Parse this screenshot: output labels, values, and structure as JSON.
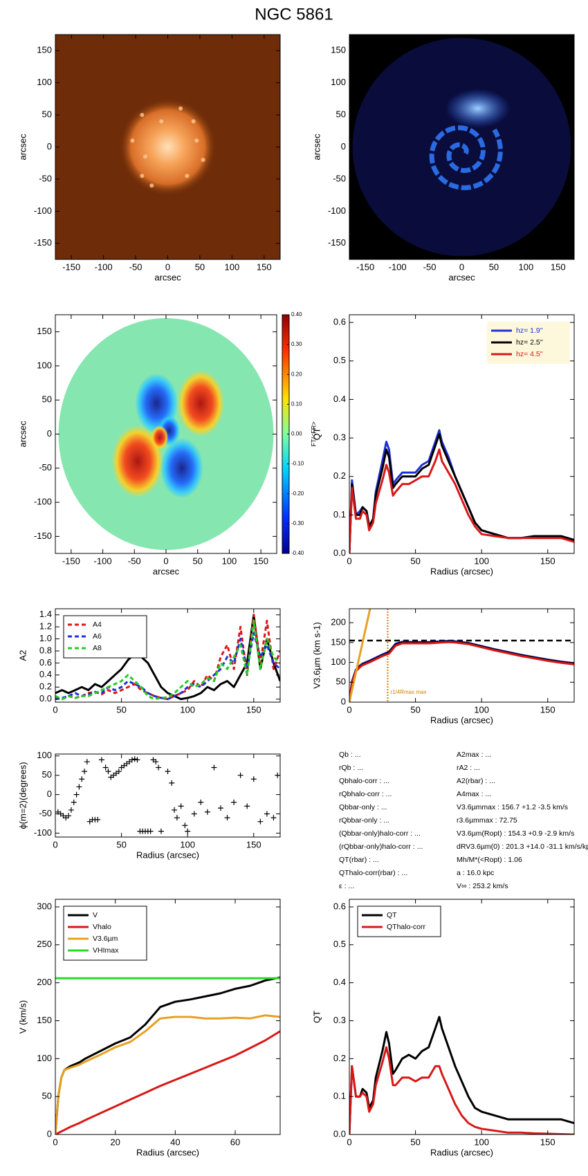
{
  "title": "NGC 5861",
  "chart_data": [
    {
      "type": "image",
      "colormap": "copper",
      "xlabel": "arcsec",
      "ylabel": "arcsec",
      "xlim": [
        -175,
        175
      ],
      "ylim": [
        -175,
        175
      ],
      "xticks": [
        -150,
        -100,
        -50,
        0,
        50,
        100,
        150
      ],
      "yticks": [
        -150,
        -100,
        -50,
        0,
        50,
        100,
        150
      ]
    },
    {
      "type": "image",
      "colormap": "blue",
      "xlabel": "arcsec",
      "ylabel": "arcsec",
      "xlim": [
        -175,
        175
      ],
      "ylim": [
        -175,
        175
      ],
      "xticks": [
        -150,
        -100,
        -50,
        0,
        50,
        100,
        150
      ],
      "yticks": [
        -150,
        -100,
        -50,
        0,
        50,
        100,
        150
      ]
    },
    {
      "type": "image",
      "colormap": "jet",
      "xlabel": "arcsec",
      "ylabel": "arcsec",
      "xlim": [
        -175,
        175
      ],
      "ylim": [
        -175,
        175
      ],
      "xticks": [
        -150,
        -100,
        -50,
        0,
        50,
        100,
        150
      ],
      "yticks": [
        -150,
        -100,
        -50,
        0,
        50,
        100,
        150
      ],
      "colorbar": {
        "label": "FT/<FR>",
        "lim": [
          -0.4,
          0.4
        ],
        "ticks": [
          {
            "value": 0.4,
            "label": "0.40"
          },
          {
            "value": 0.3,
            "label": "0.30"
          },
          {
            "value": 0.2,
            "label": "0.20"
          },
          {
            "value": 0.1,
            "label": "0.10"
          },
          {
            "value": 0,
            "label": "0.00"
          },
          {
            "value": -0.1,
            "label": "-0.10"
          },
          {
            "value": -0.2,
            "label": "-0.20"
          },
          {
            "value": -0.3,
            "label": "-0.30"
          },
          {
            "value": -0.4,
            "label": "-0.40"
          }
        ]
      }
    },
    {
      "type": "line",
      "xlabel": "Radius (arcsec)",
      "ylabel": "QT",
      "legend": "upper right",
      "xlim": [
        0,
        170
      ],
      "ylim": [
        0,
        0.62
      ],
      "xticks": [
        0,
        50,
        100,
        150
      ],
      "yticks": [
        {
          "value": 0,
          "label": "0.0"
        },
        0.1,
        0.2,
        0.3,
        0.4,
        0.5,
        0.6
      ],
      "x": [
        0,
        2,
        5,
        8,
        10,
        13,
        15,
        18,
        20,
        25,
        28,
        30,
        33,
        35,
        40,
        45,
        50,
        55,
        60,
        65,
        68,
        70,
        75,
        80,
        85,
        90,
        95,
        100,
        110,
        120,
        130,
        140,
        150,
        160,
        170
      ],
      "series": [
        {
          "name": "hz=  1.9''",
          "color": "#1f2fd6",
          "values": [
            0,
            0.19,
            0.1,
            0.11,
            0.12,
            0.11,
            0.07,
            0.09,
            0.16,
            0.24,
            0.29,
            0.27,
            0.18,
            0.19,
            0.21,
            0.21,
            0.21,
            0.23,
            0.24,
            0.29,
            0.32,
            0.29,
            0.25,
            0.2,
            0.16,
            0.12,
            0.08,
            0.06,
            0.05,
            0.04,
            0.04,
            0.045,
            0.045,
            0.045,
            0.035
          ]
        },
        {
          "name": "hz=  2.5''",
          "color": "#000000",
          "values": [
            0,
            0.18,
            0.1,
            0.1,
            0.12,
            0.11,
            0.07,
            0.09,
            0.15,
            0.22,
            0.27,
            0.25,
            0.17,
            0.18,
            0.2,
            0.2,
            0.2,
            0.22,
            0.23,
            0.28,
            0.31,
            0.28,
            0.24,
            0.2,
            0.16,
            0.12,
            0.08,
            0.06,
            0.05,
            0.04,
            0.04,
            0.045,
            0.045,
            0.045,
            0.035
          ]
        },
        {
          "name": "hz=  4.5''",
          "color": "#d81818",
          "values": [
            0,
            0.17,
            0.09,
            0.09,
            0.11,
            0.1,
            0.06,
            0.08,
            0.13,
            0.19,
            0.23,
            0.21,
            0.15,
            0.16,
            0.18,
            0.18,
            0.19,
            0.2,
            0.2,
            0.24,
            0.27,
            0.24,
            0.21,
            0.18,
            0.14,
            0.1,
            0.07,
            0.05,
            0.045,
            0.04,
            0.04,
            0.04,
            0.04,
            0.04,
            0.03
          ]
        }
      ]
    },
    {
      "type": "line",
      "ylabel": "A2",
      "legend": "upper left",
      "xlim": [
        0,
        170
      ],
      "ylim": [
        -0.05,
        1.5
      ],
      "xticks": [
        0,
        50,
        100,
        150
      ],
      "yticks": [
        {
          "value": 0,
          "label": "0.0"
        },
        0.2,
        0.4,
        0.6,
        0.8,
        {
          "value": 1,
          "label": "1.0"
        },
        1.2,
        1.4
      ],
      "x": [
        0,
        5,
        10,
        15,
        20,
        25,
        30,
        35,
        40,
        45,
        50,
        55,
        60,
        65,
        70,
        75,
        80,
        85,
        90,
        95,
        100,
        105,
        110,
        115,
        120,
        125,
        130,
        135,
        140,
        145,
        150,
        155,
        160,
        165,
        170
      ],
      "series": [
        {
          "color": "#000000",
          "values": [
            0.1,
            0.15,
            0.1,
            0.15,
            0.2,
            0.15,
            0.25,
            0.2,
            0.3,
            0.4,
            0.5,
            0.65,
            0.75,
            0.7,
            0.6,
            0.4,
            0.2,
            0.1,
            0.05,
            0,
            0.02,
            0.05,
            0.1,
            0.2,
            0.15,
            0.25,
            0.3,
            0.2,
            0.4,
            0.6,
            1.4,
            0.5,
            1,
            0.6,
            0.3
          ]
        },
        {
          "name": "A4",
          "color": "#d81818",
          "style": "dashed",
          "values": [
            0.02,
            0,
            0.05,
            0.02,
            0.05,
            0.1,
            0.12,
            0.08,
            0.15,
            0.1,
            0.15,
            0.2,
            0.25,
            0.15,
            0.1,
            0.05,
            0.02,
            0,
            0.05,
            0.1,
            0.15,
            0.3,
            0.2,
            0.4,
            0.3,
            0.7,
            0.9,
            0.5,
            1.2,
            0.4,
            1.4,
            0.6,
            1.3,
            0.5,
            0.8
          ]
        },
        {
          "name": "A6",
          "color": "#1f2fd6",
          "style": "dashed",
          "values": [
            0,
            0.02,
            0.05,
            0.1,
            0.05,
            0.08,
            0.12,
            0.1,
            0.2,
            0.15,
            0.2,
            0.3,
            0.25,
            0.2,
            0.1,
            0.05,
            0.02,
            0,
            0.05,
            0.1,
            0.2,
            0.25,
            0.2,
            0.3,
            0.4,
            0.5,
            0.7,
            0.6,
            1,
            0.5,
            1.1,
            0.7,
            0.9,
            0.6,
            0.5
          ]
        },
        {
          "name": "A8",
          "color": "#22cc22",
          "style": "dashed",
          "values": [
            0.05,
            0,
            0.05,
            0.02,
            0.05,
            0.05,
            0.1,
            0.15,
            0.2,
            0.25,
            0.3,
            0.4,
            0.3,
            0.2,
            0.05,
            0,
            0.02,
            0.03,
            0.1,
            0.2,
            0.3,
            0.2,
            0.25,
            0.35,
            0.3,
            0.6,
            0.5,
            0.7,
            0.9,
            0.4,
            1.3,
            0.5,
            1,
            0.7,
            0.6
          ]
        }
      ]
    },
    {
      "type": "line",
      "xlabel": "Radius (arcsec)",
      "ylabel": "V3.6µm (km s-1)",
      "xlim": [
        0,
        170
      ],
      "ylim": [
        0,
        235
      ],
      "xticks": [
        0,
        50,
        100,
        150
      ],
      "yticks": [
        0,
        50,
        100,
        150,
        200
      ],
      "hline": 155,
      "vline": 29,
      "vline_label": "r1/4Rmax max",
      "x": [
        0,
        2,
        5,
        8,
        10,
        15,
        20,
        25,
        30,
        35,
        40,
        50,
        60,
        70,
        75,
        80,
        90,
        100,
        110,
        120,
        130,
        140,
        150,
        160,
        170
      ],
      "series": [
        {
          "color": "#1f2fd6",
          "values": [
            0,
            52,
            82,
            92,
            97,
            104,
            112,
            120,
            127,
            147,
            152,
            151,
            151,
            153,
            154,
            153,
            149,
            141,
            133,
            126,
            119,
            113,
            107,
            102,
            98
          ]
        },
        {
          "color": "#000000",
          "values": [
            0,
            50,
            80,
            90,
            95,
            102,
            110,
            118,
            125,
            145,
            150,
            150,
            150,
            152,
            153,
            152,
            148,
            140,
            132,
            125,
            118,
            112,
            106,
            101,
            97
          ]
        },
        {
          "color": "#d81818",
          "values": [
            0,
            48,
            78,
            88,
            93,
            100,
            108,
            116,
            122,
            142,
            148,
            148,
            148,
            150,
            151,
            150,
            146,
            138,
            130,
            123,
            116,
            110,
            104,
            99,
            95
          ]
        },
        {
          "color": "#e8a020",
          "x": [
            0,
            2,
            5,
            10,
            15,
            20
          ],
          "values": [
            0,
            30,
            75,
            150,
            225,
            300
          ]
        }
      ]
    },
    {
      "type": "scatter",
      "xlabel": "Radius (arcsec)",
      "ylabel": "ϕ(m=2)(degrees)",
      "xlim": [
        0,
        170
      ],
      "ylim": [
        -110,
        105
      ],
      "xticks": [
        0,
        50,
        100,
        150
      ],
      "yticks": [
        -100,
        -50,
        0,
        50,
        100
      ],
      "x": [
        2,
        4,
        6,
        8,
        10,
        12,
        14,
        16,
        18,
        20,
        22,
        24,
        26,
        28,
        30,
        32,
        35,
        38,
        40,
        42,
        44,
        46,
        48,
        50,
        52,
        54,
        56,
        58,
        60,
        62,
        64,
        66,
        68,
        70,
        72,
        74,
        76,
        78,
        80,
        85,
        88,
        90,
        92,
        95,
        98,
        100,
        105,
        110,
        115,
        120,
        125,
        130,
        135,
        140,
        145,
        150,
        155,
        160,
        165,
        168
      ],
      "values": [
        -45,
        -50,
        -55,
        -60,
        -55,
        -40,
        -20,
        0,
        20,
        40,
        60,
        85,
        -70,
        -65,
        -65,
        -65,
        90,
        70,
        60,
        45,
        50,
        55,
        60,
        70,
        75,
        80,
        85,
        90,
        92,
        90,
        -95,
        -95,
        -95,
        -95,
        -95,
        90,
        85,
        70,
        -95,
        60,
        30,
        -40,
        -60,
        -30,
        -80,
        -95,
        -50,
        -20,
        -45,
        70,
        -35,
        -60,
        -20,
        50,
        -30,
        40,
        -70,
        -50,
        -60,
        50
      ]
    },
    {
      "type": "text",
      "left": [
        "Qb : ...",
        "rQb : ...",
        "Qbhalo-corr : ...",
        "rQbhalo-corr : ...",
        "Qbbar-only : ...",
        "rQbbar-only : ...",
        "(Qbbar-only)halo-corr : ...",
        "(rQbbar-only)halo-corr : ...",
        "QT(rbar) : ...",
        "QThalo-corr(rbar) : ...",
        "ε : ..."
      ],
      "right": [
        "A2max : ...",
        "rA2 : ...",
        "A2(rbar) : ...",
        "A4max : ...",
        "V3.6µmmax : 156.7 +1.2 -3.5 km/s",
        "r3.6µmmax : 72.75",
        "V3.6µm(Ropt) : 154.3 +0.9 -2.9 km/s",
        "dRV3.6µm(0) : 201.3 +14.0 -31.1 km/s/kpc",
        "Mh/M*(<Ropt) : 1.06",
        "a : 16.0 kpc",
        "V∞ : 253.2 km/s"
      ]
    },
    {
      "type": "line",
      "xlabel": "Radius (arcsec)",
      "ylabel": "V (km/s)",
      "legend": "upper left",
      "xlim": [
        0,
        75
      ],
      "ylim": [
        0,
        310
      ],
      "xticks": [
        0,
        20,
        40,
        60
      ],
      "yticks": [
        0,
        50,
        100,
        150,
        200,
        250,
        300
      ],
      "x": [
        0,
        1,
        2,
        3,
        5,
        8,
        10,
        15,
        20,
        25,
        30,
        35,
        40,
        45,
        50,
        55,
        60,
        65,
        70,
        75
      ],
      "series": [
        {
          "name": "V",
          "color": "#000000",
          "values": [
            0,
            50,
            75,
            85,
            90,
            95,
            100,
            110,
            120,
            128,
            145,
            168,
            175,
            178,
            182,
            186,
            192,
            196,
            203,
            207
          ]
        },
        {
          "name": "Vhalo",
          "color": "#d81818",
          "values": [
            0,
            2,
            4,
            6,
            10,
            15,
            19,
            28,
            37,
            46,
            55,
            64,
            72,
            80,
            88,
            96,
            104,
            114,
            124,
            136
          ]
        },
        {
          "name": "V3.6µm",
          "color": "#e8a020",
          "values": [
            0,
            50,
            75,
            85,
            88,
            92,
            96,
            105,
            115,
            122,
            136,
            153,
            155,
            155,
            153,
            153,
            154,
            153,
            157,
            155
          ]
        },
        {
          "name": "VHImax",
          "color": "#22dd22",
          "values": [
            206,
            206,
            206,
            206,
            206,
            206,
            206,
            206,
            206,
            206,
            206,
            206,
            206,
            206,
            206,
            206,
            206,
            206,
            206,
            206
          ]
        }
      ]
    },
    {
      "type": "line",
      "xlabel": "Radius (arcsec)",
      "ylabel": "QT",
      "legend": "upper left",
      "xlim": [
        0,
        170
      ],
      "ylim": [
        0,
        0.62
      ],
      "xticks": [
        0,
        50,
        100,
        150
      ],
      "yticks": [
        {
          "value": 0,
          "label": "0.0"
        },
        0.1,
        0.2,
        0.3,
        0.4,
        0.5,
        0.6
      ],
      "x": [
        0,
        2,
        5,
        8,
        10,
        13,
        15,
        18,
        20,
        25,
        28,
        30,
        33,
        35,
        40,
        45,
        50,
        55,
        60,
        65,
        68,
        70,
        75,
        80,
        85,
        90,
        95,
        100,
        110,
        120,
        130,
        140,
        150,
        160,
        170
      ],
      "series": [
        {
          "name": "QT",
          "color": "#000000",
          "values": [
            0,
            0.18,
            0.1,
            0.1,
            0.12,
            0.11,
            0.07,
            0.09,
            0.15,
            0.22,
            0.27,
            0.24,
            0.16,
            0.17,
            0.2,
            0.21,
            0.2,
            0.22,
            0.23,
            0.28,
            0.31,
            0.28,
            0.23,
            0.18,
            0.14,
            0.1,
            0.07,
            0.06,
            0.05,
            0.04,
            0.04,
            0.04,
            0.04,
            0.04,
            0.03
          ]
        },
        {
          "name": "QThalo-corr",
          "color": "#d81818",
          "values": [
            0,
            0.18,
            0.1,
            0.1,
            0.11,
            0.1,
            0.06,
            0.08,
            0.13,
            0.19,
            0.23,
            0.2,
            0.13,
            0.13,
            0.15,
            0.15,
            0.14,
            0.15,
            0.15,
            0.18,
            0.18,
            0.16,
            0.12,
            0.08,
            0.05,
            0.03,
            0.02,
            0.015,
            0.01,
            0.005,
            0.005,
            0.003,
            0.002,
            0.001,
            0
          ]
        }
      ]
    }
  ]
}
